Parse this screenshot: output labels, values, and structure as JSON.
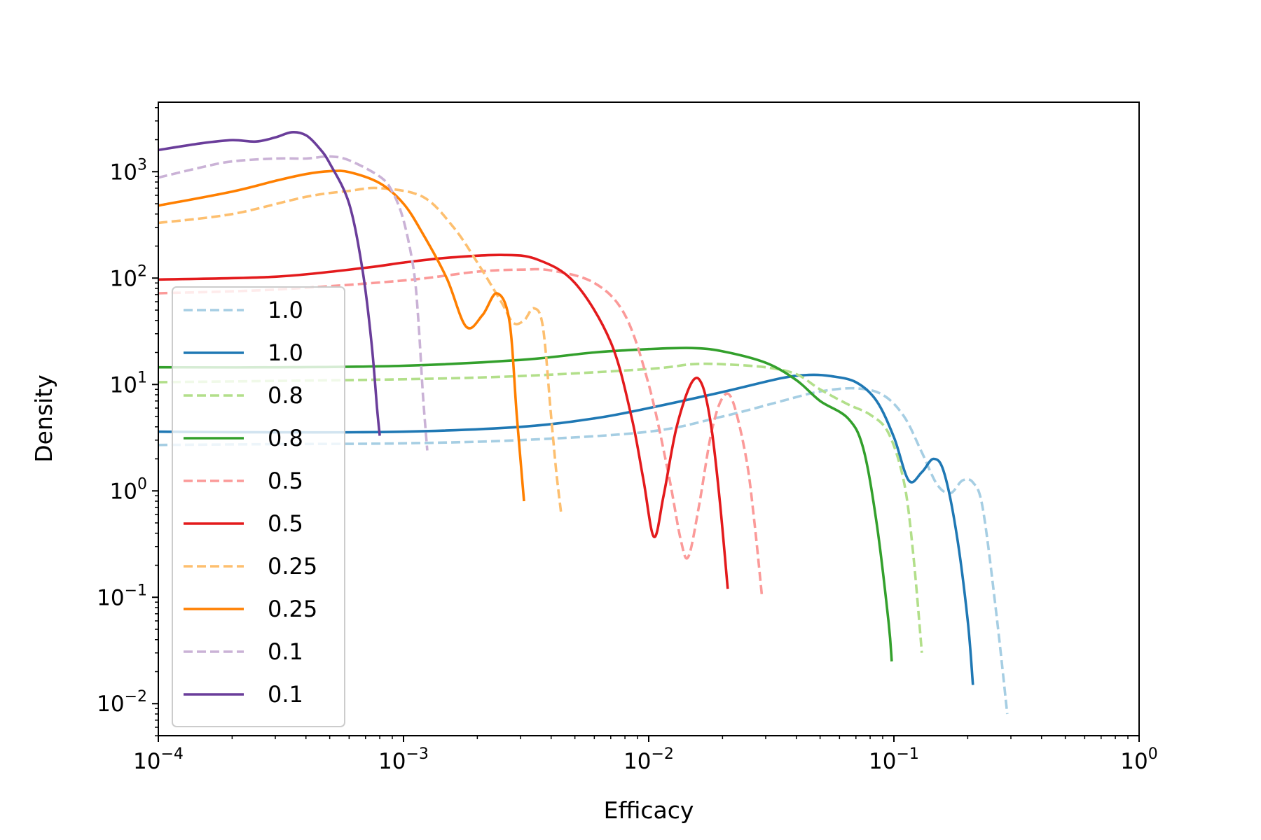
{
  "chart_data": {
    "type": "line",
    "title": "",
    "xlabel": "Efficacy",
    "ylabel": "Density",
    "xscale": "log",
    "yscale": "log",
    "xlim": [
      0.0001,
      1
    ],
    "ylim": [
      0.005,
      4500
    ],
    "x_ticks": [
      {
        "value": 0.0001,
        "base": "10",
        "exp": "−4"
      },
      {
        "value": 0.001,
        "base": "10",
        "exp": "−3"
      },
      {
        "value": 0.01,
        "base": "10",
        "exp": "−2"
      },
      {
        "value": 0.1,
        "base": "10",
        "exp": "−1"
      },
      {
        "value": 1,
        "base": "10",
        "exp": "0"
      }
    ],
    "y_ticks": [
      {
        "value": 0.01,
        "base": "10",
        "exp": "−2"
      },
      {
        "value": 0.1,
        "base": "10",
        "exp": "−1"
      },
      {
        "value": 1,
        "base": "10",
        "exp": "0"
      },
      {
        "value": 10,
        "base": "10",
        "exp": "1"
      },
      {
        "value": 100,
        "base": "10",
        "exp": "2"
      },
      {
        "value": 1000,
        "base": "10",
        "exp": "3"
      }
    ],
    "grid": false,
    "legend": {
      "position": "lower-left"
    },
    "series": [
      {
        "name": "1.0",
        "color": "#a6cee3",
        "dashed": true,
        "points": [
          [
            0.0001,
            2.7
          ],
          [
            0.0003,
            2.75
          ],
          [
            0.001,
            2.8
          ],
          [
            0.003,
            3.0
          ],
          [
            0.01,
            3.6
          ],
          [
            0.02,
            5.0
          ],
          [
            0.035,
            7.0
          ],
          [
            0.05,
            8.6
          ],
          [
            0.07,
            9.2
          ],
          [
            0.09,
            8.0
          ],
          [
            0.11,
            5.0
          ],
          [
            0.13,
            2.3
          ],
          [
            0.15,
            1.15
          ],
          [
            0.17,
            0.95
          ],
          [
            0.19,
            1.25
          ],
          [
            0.21,
            1.2
          ],
          [
            0.23,
            0.7
          ],
          [
            0.26,
            0.08
          ],
          [
            0.29,
            0.008
          ]
        ]
      },
      {
        "name": "1.0",
        "color": "#1f78b4",
        "dashed": false,
        "points": [
          [
            0.0001,
            3.6
          ],
          [
            0.0003,
            3.55
          ],
          [
            0.001,
            3.6
          ],
          [
            0.003,
            4.0
          ],
          [
            0.006,
            4.8
          ],
          [
            0.01,
            6.0
          ],
          [
            0.02,
            8.5
          ],
          [
            0.035,
            11.5
          ],
          [
            0.045,
            12.3
          ],
          [
            0.055,
            12.0
          ],
          [
            0.07,
            10.5
          ],
          [
            0.085,
            7.0
          ],
          [
            0.1,
            3.2
          ],
          [
            0.115,
            1.25
          ],
          [
            0.13,
            1.5
          ],
          [
            0.145,
            2.0
          ],
          [
            0.16,
            1.5
          ],
          [
            0.18,
            0.4
          ],
          [
            0.2,
            0.06
          ],
          [
            0.21,
            0.015
          ]
        ]
      },
      {
        "name": "0.8",
        "color": "#b2df8a",
        "dashed": true,
        "points": [
          [
            0.0001,
            10.5
          ],
          [
            0.0003,
            10.8
          ],
          [
            0.001,
            11.2
          ],
          [
            0.003,
            12.0
          ],
          [
            0.01,
            14.0
          ],
          [
            0.015,
            15.5
          ],
          [
            0.02,
            15.5
          ],
          [
            0.03,
            14.5
          ],
          [
            0.04,
            12.5
          ],
          [
            0.05,
            9.0
          ],
          [
            0.065,
            6.5
          ],
          [
            0.08,
            5.2
          ],
          [
            0.095,
            3.5
          ],
          [
            0.11,
            1.2
          ],
          [
            0.12,
            0.25
          ],
          [
            0.13,
            0.03
          ]
        ]
      },
      {
        "name": "0.8",
        "color": "#33a02c",
        "dashed": false,
        "points": [
          [
            0.0001,
            14.5
          ],
          [
            0.0003,
            14.5
          ],
          [
            0.001,
            15.0
          ],
          [
            0.003,
            17.0
          ],
          [
            0.006,
            20.0
          ],
          [
            0.01,
            21.5
          ],
          [
            0.015,
            22.0
          ],
          [
            0.02,
            20.5
          ],
          [
            0.03,
            16.0
          ],
          [
            0.04,
            11.0
          ],
          [
            0.05,
            7.0
          ],
          [
            0.065,
            4.8
          ],
          [
            0.075,
            2.5
          ],
          [
            0.085,
            0.5
          ],
          [
            0.095,
            0.06
          ],
          [
            0.098,
            0.025
          ]
        ]
      },
      {
        "name": "0.5",
        "color": "#fb9a99",
        "dashed": true,
        "points": [
          [
            0.0001,
            72
          ],
          [
            0.0003,
            78
          ],
          [
            0.001,
            95
          ],
          [
            0.002,
            115
          ],
          [
            0.003,
            120
          ],
          [
            0.004,
            118
          ],
          [
            0.006,
            90
          ],
          [
            0.008,
            45
          ],
          [
            0.01,
            10
          ],
          [
            0.012,
            1.5
          ],
          [
            0.0135,
            0.35
          ],
          [
            0.0145,
            0.24
          ],
          [
            0.016,
            0.7
          ],
          [
            0.018,
            3.5
          ],
          [
            0.02,
            7.5
          ],
          [
            0.022,
            7.0
          ],
          [
            0.025,
            2.0
          ],
          [
            0.027,
            0.5
          ],
          [
            0.029,
            0.1
          ]
        ]
      },
      {
        "name": "0.5",
        "color": "#e31a1c",
        "dashed": false,
        "points": [
          [
            0.0001,
            97
          ],
          [
            0.0003,
            103
          ],
          [
            0.0007,
            125
          ],
          [
            0.001,
            140
          ],
          [
            0.0015,
            155
          ],
          [
            0.0025,
            165
          ],
          [
            0.0035,
            150
          ],
          [
            0.005,
            90
          ],
          [
            0.007,
            25
          ],
          [
            0.0085,
            5.0
          ],
          [
            0.0095,
            1.3
          ],
          [
            0.0105,
            0.37
          ],
          [
            0.0115,
            0.9
          ],
          [
            0.013,
            4.0
          ],
          [
            0.015,
            10.5
          ],
          [
            0.0165,
            10.0
          ],
          [
            0.018,
            4.0
          ],
          [
            0.0195,
            0.8
          ],
          [
            0.021,
            0.12
          ]
        ]
      },
      {
        "name": "0.25",
        "color": "#fdbf6f",
        "dashed": true,
        "points": [
          [
            0.0001,
            330
          ],
          [
            0.0002,
            400
          ],
          [
            0.0004,
            580
          ],
          [
            0.0006,
            660
          ],
          [
            0.0008,
            700
          ],
          [
            0.0012,
            580
          ],
          [
            0.0016,
            300
          ],
          [
            0.002,
            140
          ],
          [
            0.0025,
            60
          ],
          [
            0.0028,
            38
          ],
          [
            0.0031,
            40
          ],
          [
            0.0034,
            52
          ],
          [
            0.0037,
            35
          ],
          [
            0.004,
            5.0
          ],
          [
            0.0042,
            1.5
          ],
          [
            0.0044,
            0.6
          ]
        ]
      },
      {
        "name": "0.25",
        "color": "#ff7f00",
        "dashed": false,
        "points": [
          [
            0.0001,
            480
          ],
          [
            0.0002,
            650
          ],
          [
            0.0003,
            820
          ],
          [
            0.0004,
            950
          ],
          [
            0.0005,
            1010
          ],
          [
            0.0006,
            990
          ],
          [
            0.0008,
            780
          ],
          [
            0.001,
            500
          ],
          [
            0.0012,
            260
          ],
          [
            0.0015,
            100
          ],
          [
            0.0018,
            35
          ],
          [
            0.0021,
            45
          ],
          [
            0.0024,
            72
          ],
          [
            0.0027,
            40
          ],
          [
            0.0029,
            5.0
          ],
          [
            0.0031,
            0.8
          ]
        ]
      },
      {
        "name": "0.1",
        "color": "#cab2d6",
        "dashed": true,
        "points": [
          [
            0.0001,
            880
          ],
          [
            0.00015,
            1100
          ],
          [
            0.0002,
            1250
          ],
          [
            0.0003,
            1330
          ],
          [
            0.0004,
            1330
          ],
          [
            0.0005,
            1390
          ],
          [
            0.0006,
            1280
          ],
          [
            0.0008,
            900
          ],
          [
            0.0009,
            650
          ],
          [
            0.001,
            350
          ],
          [
            0.0011,
            120
          ],
          [
            0.00115,
            40
          ],
          [
            0.0012,
            8.0
          ],
          [
            0.00125,
            2.4
          ]
        ]
      },
      {
        "name": "0.1",
        "color": "#6a3d9a",
        "dashed": false,
        "points": [
          [
            0.0001,
            1600
          ],
          [
            0.00015,
            1850
          ],
          [
            0.0002,
            1980
          ],
          [
            0.00025,
            1920
          ],
          [
            0.0003,
            2100
          ],
          [
            0.00035,
            2350
          ],
          [
            0.0004,
            2200
          ],
          [
            0.00045,
            1700
          ],
          [
            0.0005,
            1200
          ],
          [
            0.0006,
            500
          ],
          [
            0.00068,
            120
          ],
          [
            0.00074,
            25
          ],
          [
            0.00078,
            6.0
          ],
          [
            0.0008,
            3.3
          ]
        ]
      }
    ]
  }
}
